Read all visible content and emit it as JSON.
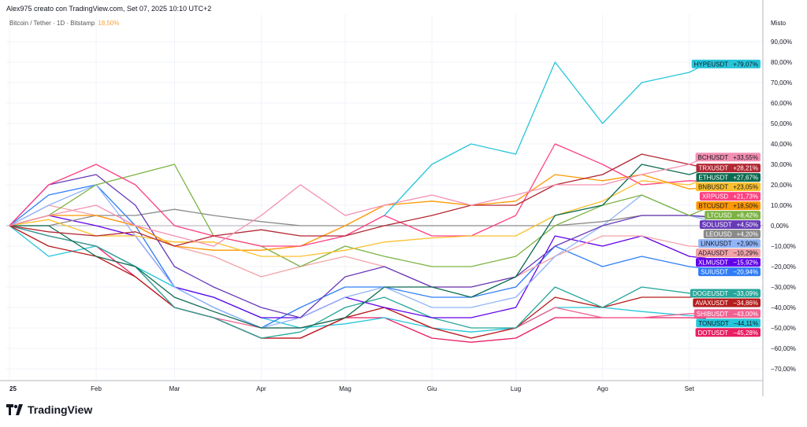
{
  "header": {
    "credit": "Alex975 creato con TradingView.com, Set 07, 2025 10:10 UTC+2",
    "symbol_legend": "Bitcoin / Tether · 1D · Bitstamp",
    "symbol_change": "18,50%"
  },
  "scale_mode": "Misto",
  "footer": {
    "brand": "TradingView",
    "logo_icon": "tradingview-logo-icon"
  },
  "chart_data": {
    "type": "line",
    "ylabel": "",
    "xlabel": "",
    "y_unit": "percent change",
    "ylim": [
      -78,
      100
    ],
    "yticks": [
      90,
      80,
      70,
      60,
      50,
      40,
      30,
      20,
      10,
      0,
      -10,
      -20,
      -30,
      -40,
      -50,
      -60,
      -70
    ],
    "x_tick_labels": [
      "25",
      "Feb",
      "Mar",
      "Apr",
      "Mag",
      "Giu",
      "Lug",
      "Ago",
      "Set"
    ],
    "x_tick_dates": [
      "2025-01-01",
      "2025-02-01",
      "2025-03-01",
      "2025-04-01",
      "2025-05-01",
      "2025-06-01",
      "2025-07-01",
      "2025-08-01",
      "2025-09-01"
    ],
    "grid": true,
    "legend_placement": "right",
    "x": [
      "2025-01-01",
      "2025-01-15",
      "2025-02-01",
      "2025-02-15",
      "2025-03-01",
      "2025-03-15",
      "2025-04-01",
      "2025-04-15",
      "2025-05-01",
      "2025-05-15",
      "2025-06-01",
      "2025-06-15",
      "2025-07-01",
      "2025-07-15",
      "2025-08-01",
      "2025-08-15",
      "2025-09-01",
      "2025-09-07"
    ],
    "series": [
      {
        "name": "HYPEUSDT",
        "label": "+79,07%",
        "color": "#26c6da",
        "values": [
          null,
          null,
          null,
          null,
          null,
          null,
          null,
          null,
          null,
          5,
          30,
          40,
          35,
          80,
          50,
          70,
          75,
          79.07
        ]
      },
      {
        "name": "BCHUSDT",
        "label": "+33,55%",
        "color": "#f48fb1",
        "values": [
          0,
          5,
          10,
          0,
          -5,
          -10,
          5,
          20,
          5,
          10,
          15,
          10,
          15,
          20,
          20,
          25,
          30,
          33.55
        ]
      },
      {
        "name": "TRXUSDT",
        "label": "+28,21%",
        "color": "#b22833",
        "values": [
          0,
          -3,
          -5,
          -3,
          -10,
          -5,
          -2,
          -5,
          -5,
          0,
          5,
          10,
          10,
          20,
          25,
          35,
          30,
          28.21
        ]
      },
      {
        "name": "ETHUSDT",
        "label": "+27,67%",
        "color": "#0b6b50",
        "values": [
          0,
          0,
          -15,
          -20,
          -35,
          -42,
          -50,
          -50,
          -45,
          -30,
          -30,
          -35,
          -25,
          5,
          10,
          30,
          25,
          27.67
        ]
      },
      {
        "name": "BNBUSDT",
        "label": "+23,05%",
        "color": "#fbc02d",
        "values": [
          0,
          3,
          -5,
          -5,
          -8,
          -8,
          -15,
          -15,
          -12,
          -8,
          -6,
          -5,
          -5,
          5,
          12,
          22,
          20,
          23.05
        ]
      },
      {
        "name": "XRPUSD",
        "label": "+21,73%",
        "color": "#ff4081",
        "values": [
          0,
          20,
          30,
          20,
          0,
          -5,
          -10,
          -10,
          -5,
          5,
          -5,
          -5,
          5,
          40,
          30,
          20,
          22,
          21.73
        ]
      },
      {
        "name": "BTCUSDT",
        "label": "+18,50%",
        "color": "#ff9800",
        "values": [
          0,
          5,
          5,
          0,
          -10,
          -12,
          -12,
          -10,
          0,
          10,
          12,
          10,
          12,
          25,
          22,
          25,
          18,
          18.5
        ]
      },
      {
        "name": "LTCUSD",
        "label": "+8,42%",
        "color": "#7cb342",
        "values": [
          0,
          5,
          20,
          25,
          30,
          -5,
          -10,
          -20,
          -10,
          -15,
          -20,
          -20,
          -15,
          0,
          10,
          15,
          5,
          8.42
        ]
      },
      {
        "name": "SOLUSDT",
        "label": "+4,50%",
        "color": "#673ab7",
        "values": [
          0,
          20,
          25,
          10,
          -20,
          -30,
          -40,
          -45,
          -25,
          -20,
          -30,
          -30,
          -25,
          -10,
          0,
          5,
          5,
          4.5
        ]
      },
      {
        "name": "LEOUSD",
        "label": "+4,20%",
        "color": "#8a8a8a",
        "values": [
          0,
          0,
          5,
          5,
          8,
          5,
          2,
          0,
          0,
          0,
          0,
          0,
          0,
          0,
          2,
          5,
          5,
          4.2
        ]
      },
      {
        "name": "LINKUSDT",
        "label": "+2,90%",
        "color": "#90b4f8",
        "values": [
          0,
          10,
          20,
          -5,
          -30,
          -40,
          -50,
          -45,
          -35,
          -30,
          -40,
          -40,
          -35,
          -15,
          0,
          15,
          5,
          2.9
        ]
      },
      {
        "name": "ADAUSDT",
        "label": "−10,29%",
        "color": "#f4a3a8",
        "values": [
          0,
          10,
          5,
          0,
          -10,
          -15,
          -25,
          -20,
          -15,
          -20,
          -30,
          -30,
          -25,
          -15,
          -5,
          -5,
          -10,
          -10.29
        ]
      },
      {
        "name": "XLMUSDT",
        "label": "−15,92%",
        "color": "#6200ea",
        "values": [
          0,
          5,
          0,
          -5,
          -30,
          -35,
          -45,
          -45,
          -35,
          -40,
          -45,
          -45,
          -40,
          -5,
          -10,
          -5,
          -15,
          -15.92
        ]
      },
      {
        "name": "SUIUSDT",
        "label": "−20,94%",
        "color": "#2f7df6",
        "values": [
          0,
          15,
          20,
          0,
          -30,
          -40,
          -50,
          -40,
          -30,
          -30,
          -35,
          -35,
          -30,
          -10,
          -20,
          -15,
          -20,
          -20.94
        ]
      },
      {
        "name": "DOGEUSDT",
        "label": "−33,09%",
        "color": "#26a69a",
        "values": [
          0,
          -5,
          -10,
          -20,
          -40,
          -45,
          -55,
          -52,
          -40,
          -35,
          -45,
          -50,
          -50,
          -30,
          -40,
          -30,
          -33,
          -33.09
        ]
      },
      {
        "name": "AVAXUSDT",
        "label": "−34,86%",
        "color": "#b71c1c",
        "values": [
          0,
          -10,
          -15,
          -25,
          -40,
          -45,
          -55,
          -55,
          -45,
          -40,
          -50,
          -55,
          -50,
          -35,
          -40,
          -35,
          -35,
          -34.86
        ]
      },
      {
        "name": "SHIBUSDT",
        "label": "−43,00%",
        "color": "#f06292",
        "values": [
          0,
          -5,
          -10,
          -20,
          -40,
          -45,
          -50,
          -50,
          -45,
          -40,
          -50,
          -55,
          -50,
          -40,
          -45,
          -45,
          -43,
          -43
        ]
      },
      {
        "name": "TONUSDT",
        "label": "−44,11%",
        "color": "#26c6da",
        "values": [
          0,
          -15,
          -10,
          -20,
          -30,
          -35,
          -45,
          -50,
          -48,
          -45,
          -50,
          -52,
          -50,
          -40,
          -40,
          -42,
          -44,
          -44.11
        ]
      },
      {
        "name": "DOTUSDT",
        "label": "−45,28%",
        "color": "#e91e63",
        "values": [
          0,
          -5,
          -10,
          -25,
          -40,
          -45,
          -55,
          -55,
          -45,
          -45,
          -55,
          -57,
          -55,
          -45,
          -45,
          -45,
          -45,
          -45.28
        ]
      }
    ]
  }
}
